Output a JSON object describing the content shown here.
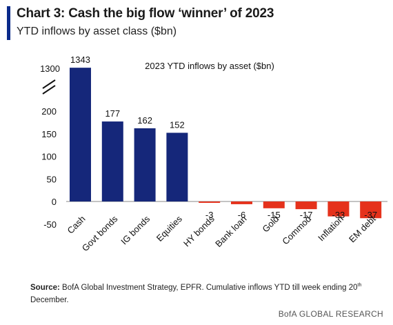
{
  "header": {
    "title": "Chart 3: Cash the big flow ‘winner’ of 2023",
    "subtitle": "YTD inflows by asset class ($bn)"
  },
  "chart_data": {
    "type": "bar",
    "title": "2023 YTD inflows by asset ($bn)",
    "categories": [
      "Cash",
      "Govt bonds",
      "IG bonds",
      "Equities",
      "HY bonds",
      "Bank loan",
      "Gold",
      "Commod",
      "Inflation",
      "EM debt"
    ],
    "values": [
      1343,
      177,
      162,
      152,
      -3,
      -6,
      -15,
      -17,
      -33,
      -37
    ],
    "data_labels": [
      "1343",
      "177",
      "162",
      "152",
      "-3",
      "-6",
      "-15",
      "-17",
      "-33",
      "-37"
    ],
    "y_ticks": [
      -50,
      0,
      50,
      100,
      150,
      200
    ],
    "y_break_tick": 1300,
    "y_break_tick_label": "1300",
    "axis_break": true,
    "ylim": [
      -50,
      1343
    ],
    "grid": false,
    "colors": {
      "positive": "#15277a",
      "negative": "#e5321c"
    }
  },
  "footer": {
    "source_label": "Source:",
    "source_text": "BofA Global Investment Strategy, EPFR. Cumulative inflows YTD till week ending 20",
    "source_sup": "th",
    "source_tail": "December.",
    "brand": "BofA GLOBAL RESEARCH"
  }
}
